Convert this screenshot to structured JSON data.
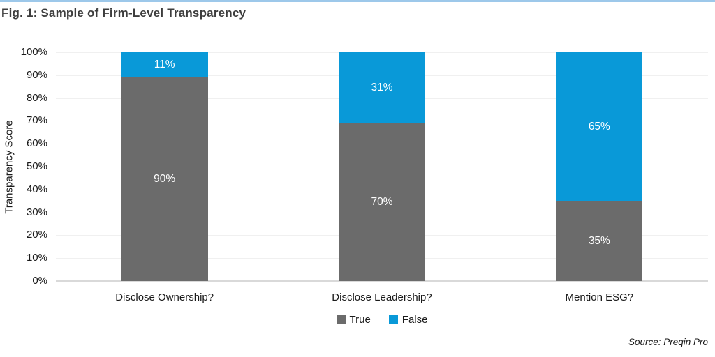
{
  "figure": {
    "title": "Fig. 1: Sample of Firm-Level Transparency",
    "source": "Source: Preqin Pro",
    "accent_line_color": "#9dc8ea"
  },
  "chart_data": {
    "type": "bar",
    "stacked": true,
    "title": "Fig. 1: Sample of Firm-Level Transparency",
    "categories": [
      "Disclose Ownership?",
      "Disclose Leadership?",
      "Mention ESG?"
    ],
    "series": [
      {
        "name": "True",
        "color": "#6b6b6b",
        "values": [
          90,
          70,
          35
        ],
        "labels": [
          "90%",
          "70%",
          "35%"
        ]
      },
      {
        "name": "False",
        "color": "#0999d8",
        "values": [
          11,
          31,
          65
        ],
        "labels": [
          "11%",
          "31%",
          "65%"
        ]
      }
    ],
    "ylabel": "Transparency Score",
    "xlabel": "",
    "ylim": [
      0,
      100
    ],
    "y_ticks": [
      "0%",
      "10%",
      "20%",
      "30%",
      "40%",
      "50%",
      "60%",
      "70%",
      "80%",
      "90%",
      "100%"
    ],
    "grid": true,
    "legend_position": "bottom",
    "gridline_color": "#f0f0f0",
    "axis_line_color": "#d9d9d9"
  }
}
